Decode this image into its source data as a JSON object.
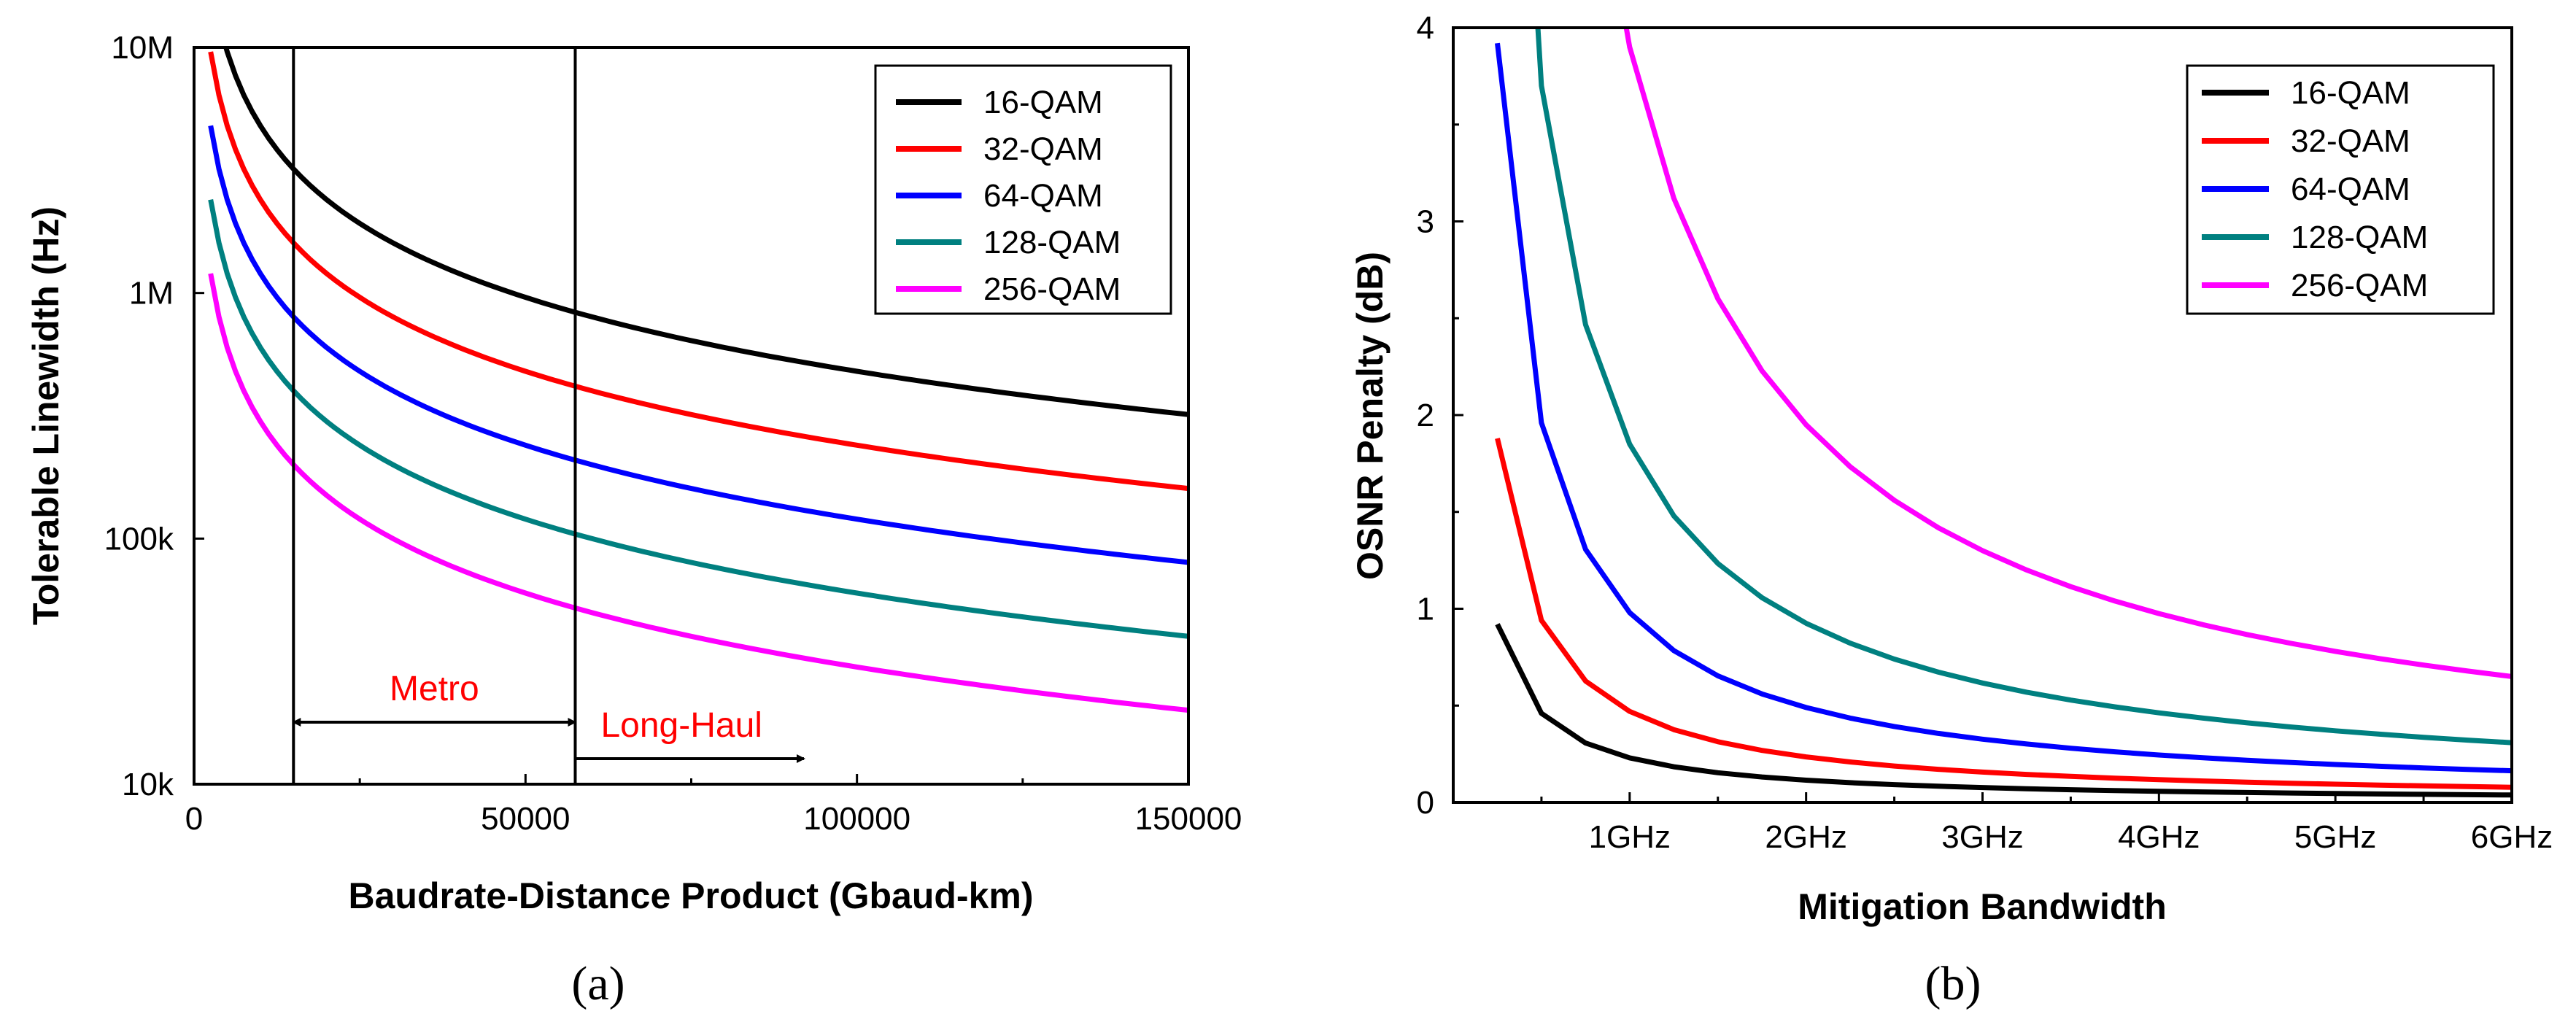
{
  "chart_data": [
    {
      "panel": "(a)",
      "type": "line",
      "xlabel": "Baudrate-Distance Product (Gbaud-km)",
      "ylabel": "Tolerable Linewidth (Hz)",
      "xlim": [
        0,
        150000
      ],
      "ylim": [
        10000,
        10000000
      ],
      "yscale": "log",
      "x_ticks": [
        0,
        50000,
        100000,
        150000
      ],
      "x_tick_labels": [
        "0",
        "50000",
        "100000",
        "150000"
      ],
      "y_ticks": [
        10000,
        100000,
        1000000,
        10000000
      ],
      "y_tick_labels": [
        "10k",
        "100k",
        "1M",
        "10M"
      ],
      "legend_position": "top-right",
      "grid": false,
      "series": [
        {
          "name": "16-QAM",
          "color": "#000000",
          "k": 48000000000
        },
        {
          "name": "32-QAM",
          "color": "#ff0000",
          "k": 24000000000
        },
        {
          "name": "64-QAM",
          "color": "#0000ff",
          "k": 12000000000
        },
        {
          "name": "128-QAM",
          "color": "#008080",
          "k": 6000000000
        },
        {
          "name": "256-QAM",
          "color": "#ff00ff",
          "k": 3000000000
        }
      ],
      "vertical_lines_x": [
        15000,
        57500
      ],
      "annotations": [
        {
          "text": "Metro",
          "from_x": 15000,
          "to_x": 57500,
          "arrow": "both"
        },
        {
          "text": "Long-Haul",
          "from_x": 57500,
          "to_x": 92000,
          "arrow": "right"
        }
      ]
    },
    {
      "panel": "(b)",
      "type": "line",
      "xlabel": "Mitigation Bandwidth",
      "ylabel": "OSNR Penalty (dB)",
      "xlim": [
        0,
        6
      ],
      "ylim": [
        0,
        4
      ],
      "x_ticks": [
        1,
        2,
        3,
        4,
        5,
        6
      ],
      "x_tick_labels": [
        "1GHz",
        "2GHz",
        "3GHz",
        "4GHz",
        "5GHz",
        "6GHz"
      ],
      "y_ticks": [
        0,
        1,
        2,
        3,
        4
      ],
      "y_tick_labels": [
        "0",
        "1",
        "2",
        "3",
        "4"
      ],
      "legend_position": "top-right",
      "grid": false,
      "x_values": [
        0.25,
        0.5,
        0.75,
        1.0,
        1.25,
        1.5,
        1.75,
        2.0,
        2.25,
        2.5,
        2.75,
        3.0,
        3.25,
        3.5,
        3.75,
        4.0,
        4.25,
        4.5,
        4.75,
        5.0,
        5.25,
        5.5,
        5.75,
        6.0
      ],
      "series": [
        {
          "name": "16-QAM",
          "color": "#000000",
          "k": 0.23
        },
        {
          "name": "32-QAM",
          "color": "#ff0000",
          "k": 0.47
        },
        {
          "name": "64-QAM",
          "color": "#0000ff",
          "k": 0.98
        },
        {
          "name": "128-QAM",
          "color": "#008080",
          "k": 1.85
        },
        {
          "name": "256-QAM",
          "color": "#ff00ff",
          "k": 3.9
        }
      ]
    }
  ]
}
